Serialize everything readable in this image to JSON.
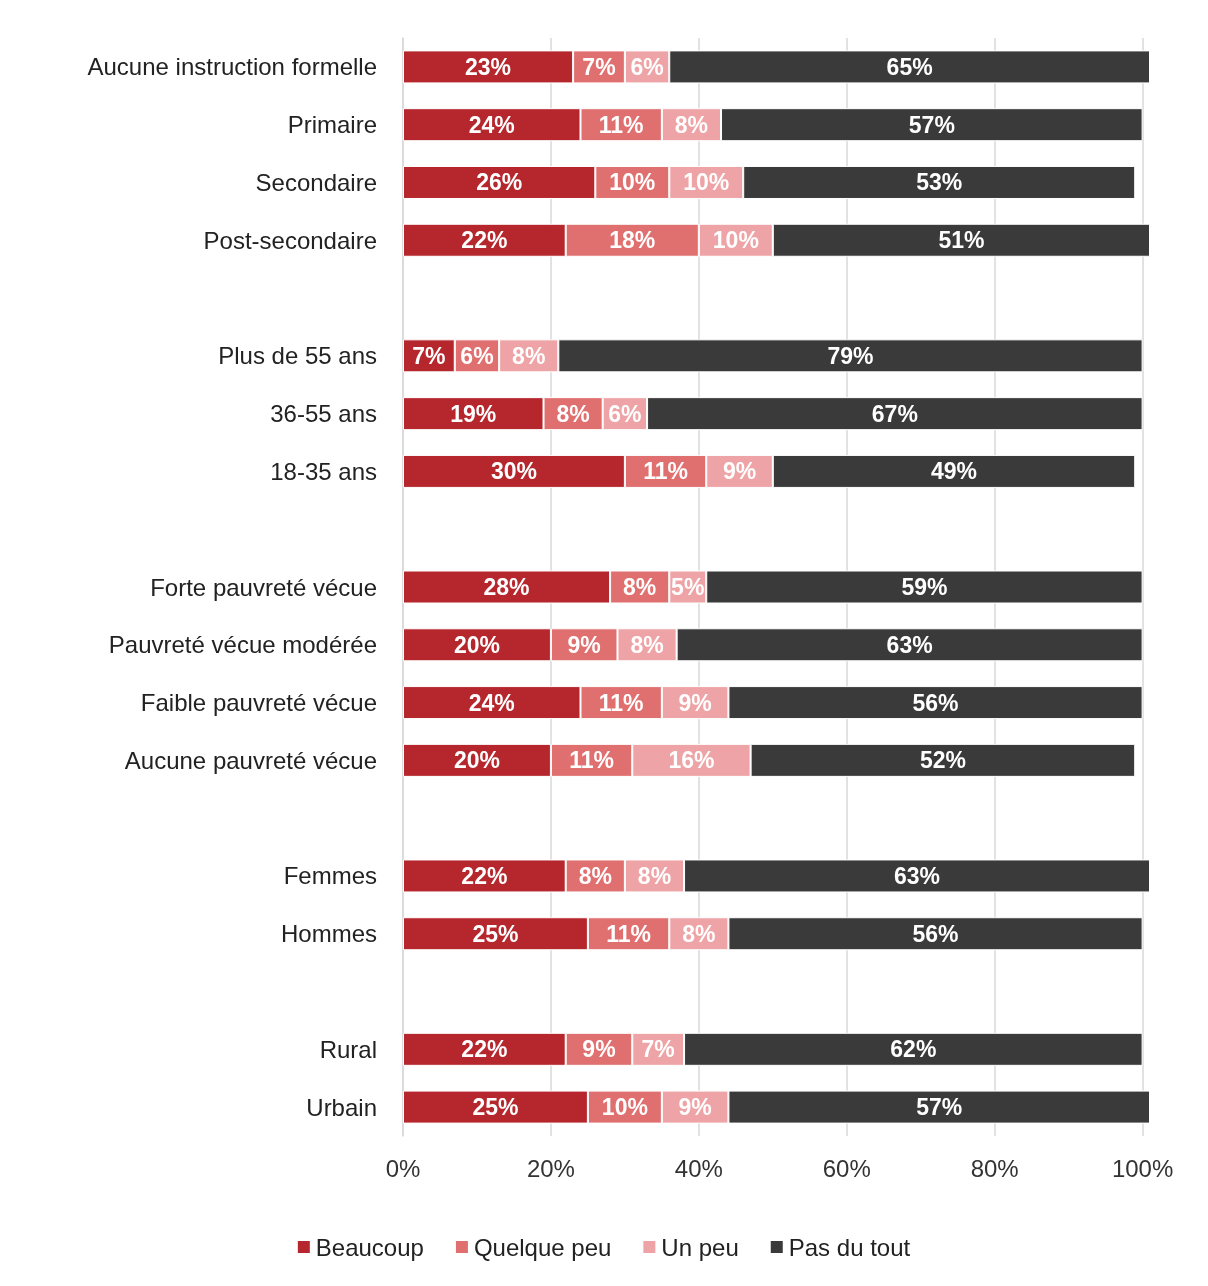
{
  "chart_data": {
    "type": "bar",
    "orientation": "horizontal",
    "stacked": true,
    "data_labels": true,
    "grid": "x",
    "legend": "bottom",
    "categories": [
      "Aucune instruction formelle",
      "Primaire",
      "Secondaire",
      "Post-secondaire",
      null,
      "Plus de 55 ans",
      "36-55 ans",
      "18-35 ans",
      null,
      "Forte pauvreté vécue",
      "Pauvreté vécue modérée",
      "Faible pauvreté vécue",
      "Aucune pauvreté vécue",
      null,
      "Femmes",
      "Hommes",
      null,
      "Rural",
      "Urbain"
    ],
    "xlim": [
      0,
      101
    ],
    "xticks": [
      {
        "value": 0,
        "label": "0%"
      },
      {
        "value": 20,
        "label": "20%"
      },
      {
        "value": 40,
        "label": "40%"
      },
      {
        "value": 60,
        "label": "60%"
      },
      {
        "value": 80,
        "label": "80%"
      },
      {
        "value": 100,
        "label": "100%"
      }
    ],
    "series": [
      {
        "name": "Beaucoup",
        "color": "#b5272d",
        "values": [
          23,
          24,
          26,
          22,
          null,
          7,
          19,
          30,
          null,
          28,
          20,
          24,
          20,
          null,
          22,
          25,
          null,
          22,
          25
        ],
        "value_labels": [
          "23%",
          "24%",
          "26%",
          "22%",
          null,
          "7%",
          "19%",
          "30%",
          null,
          "28%",
          "20%",
          "24%",
          "20%",
          null,
          "22%",
          "25%",
          null,
          "22%",
          "25%"
        ]
      },
      {
        "name": "Quelque peu",
        "color": "#e07070",
        "values": [
          7,
          11,
          10,
          18,
          null,
          6,
          8,
          11,
          null,
          8,
          9,
          11,
          11,
          null,
          8,
          11,
          null,
          9,
          10
        ],
        "value_labels": [
          "7%",
          "11%",
          "10%",
          "18%",
          null,
          "6%",
          "8%",
          "11%",
          null,
          "8%",
          "9%",
          "11%",
          "11%",
          null,
          "8%",
          "11%",
          null,
          "9%",
          "10%"
        ]
      },
      {
        "name": "Un peu",
        "color": "#eea4a6",
        "values": [
          6,
          8,
          10,
          10,
          null,
          8,
          6,
          9,
          null,
          5,
          8,
          9,
          16,
          null,
          8,
          8,
          null,
          7,
          9
        ],
        "value_labels": [
          "6%",
          "8%",
          "10%",
          "10%",
          null,
          "8%",
          "6%",
          "9%",
          null,
          "5%",
          "8%",
          "9%",
          "16%",
          null,
          "8%",
          "8%",
          null,
          "7%",
          "9%"
        ]
      },
      {
        "name": "Pas du tout",
        "color": "#3a3a3a",
        "values": [
          65,
          57,
          53,
          51,
          null,
          79,
          67,
          49,
          null,
          59,
          63,
          56,
          52,
          null,
          63,
          56,
          null,
          62,
          57
        ],
        "value_labels": [
          "65%",
          "57%",
          "53%",
          "51%",
          null,
          "79%",
          "67%",
          "49%",
          null,
          "59%",
          "63%",
          "56%",
          "52%",
          null,
          "63%",
          "56%",
          null,
          "62%",
          "57%"
        ]
      }
    ]
  }
}
